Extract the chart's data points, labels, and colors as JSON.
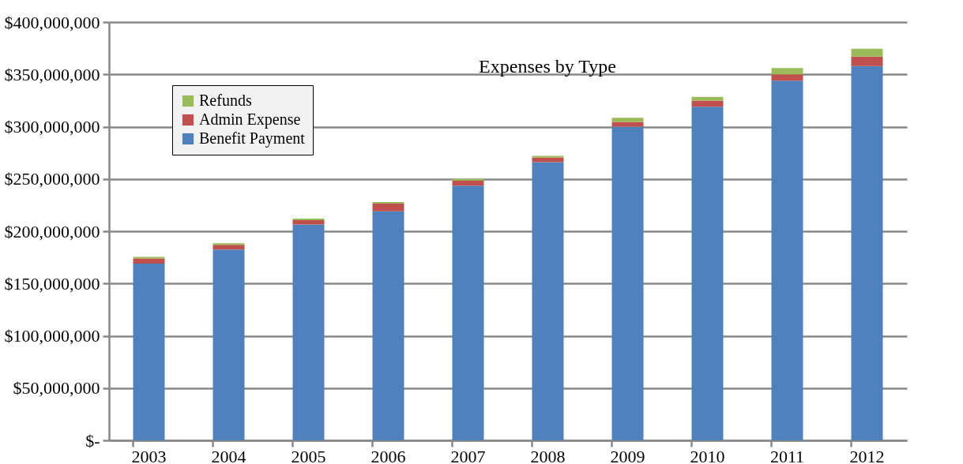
{
  "chart_data": {
    "type": "bar",
    "title": "Expenses by Type",
    "stacked": true,
    "grid": "y",
    "legend": "top left",
    "categories": [
      "2003",
      "2004",
      "2005",
      "2006",
      "2007",
      "2008",
      "2009",
      "2010",
      "2011",
      "2012"
    ],
    "series": [
      {
        "name": "Benefit Payment",
        "color": "#4f81bd",
        "values": [
          169000000,
          182500000,
          206500000,
          219000000,
          243500000,
          266000000,
          300000000,
          319000000,
          344000000,
          358000000
        ]
      },
      {
        "name": "Admin Expense",
        "color": "#c0504d",
        "values": [
          5000000,
          4500000,
          4000000,
          7500000,
          5000000,
          4500000,
          4500000,
          6000000,
          6000000,
          9000000
        ]
      },
      {
        "name": "Refunds",
        "color": "#9bbb59",
        "values": [
          1500000,
          1500000,
          1500000,
          1500000,
          1500000,
          1500000,
          4000000,
          3500000,
          6000000,
          7500000
        ]
      }
    ],
    "ylim": [
      0,
      400000000
    ],
    "yticks": [
      {
        "value": 0,
        "label": "$-"
      },
      {
        "value": 50000000,
        "label": "$50,000,000"
      },
      {
        "value": 100000000,
        "label": "$100,000,000"
      },
      {
        "value": 150000000,
        "label": "$150,000,000"
      },
      {
        "value": 200000000,
        "label": "$200,000,000"
      },
      {
        "value": 250000000,
        "label": "$250,000,000"
      },
      {
        "value": 300000000,
        "label": "$300,000,000"
      },
      {
        "value": 350000000,
        "label": "$350,000,000"
      },
      {
        "value": 400000000,
        "label": "$400,000,000"
      }
    ]
  }
}
